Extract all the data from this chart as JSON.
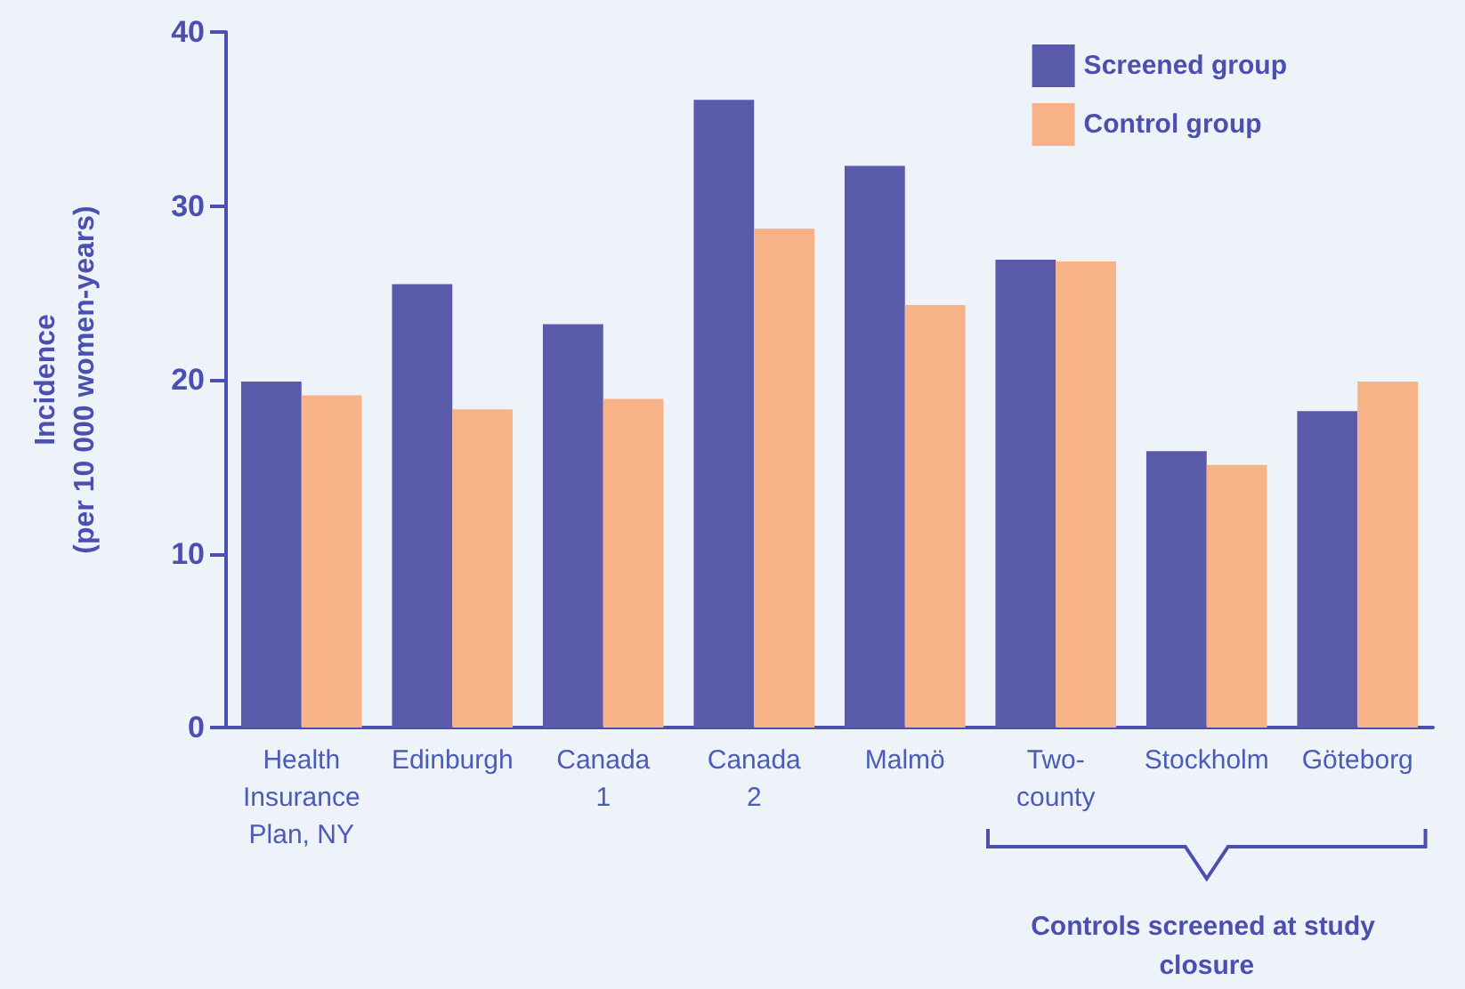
{
  "chart_data": {
    "type": "bar",
    "ylabel": "Incidence\n(per 10 000 women-years)",
    "categories": [
      "Health\nInsurance\nPlan, NY",
      "Edinburgh",
      "Canada\n1",
      "Canada\n2",
      "Malmö",
      "Two-\ncounty",
      "Stockholm",
      "Göteborg"
    ],
    "series": [
      {
        "name": "Screened group",
        "color": "#5a5aab",
        "values": [
          19.9,
          25.5,
          23.2,
          36.1,
          32.3,
          26.9,
          15.9,
          18.2
        ]
      },
      {
        "name": "Control group",
        "color": "#f8b287",
        "values": [
          19.1,
          18.3,
          18.9,
          28.7,
          24.3,
          26.8,
          15.1,
          19.9
        ]
      }
    ],
    "ylim": [
      0,
      40
    ],
    "yticks": [
      0,
      10,
      20,
      30,
      40
    ],
    "grid": false,
    "legend": "top right",
    "annotations": [
      "Controls screened at study closure"
    ]
  }
}
